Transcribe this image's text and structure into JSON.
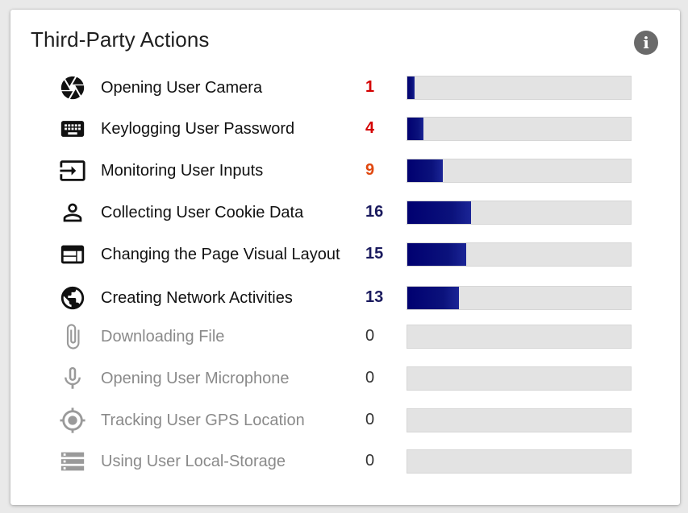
{
  "title": "Third-Party Actions",
  "max_value": 100,
  "colors": {
    "count_low": "#d40000",
    "count_mid": "#e0470e",
    "count_high": "#1a1a5e",
    "bar_fill": "#000070",
    "bar_track": "#e3e3e3",
    "icon_active": "#111111",
    "icon_inactive": "#9a9a9a"
  },
  "actions": [
    {
      "label": "Opening User Camera",
      "count": "1",
      "value": 1,
      "level": 3.3,
      "icon": "camera-aperture-icon",
      "active": true,
      "count_color": "#d40000"
    },
    {
      "label": "Keylogging User Password",
      "count": "4",
      "value": 4,
      "level": 7.2,
      "icon": "keyboard-icon",
      "active": true,
      "count_color": "#d40000"
    },
    {
      "label": "Monitoring User Inputs",
      "count": "9",
      "value": 9,
      "level": 16,
      "icon": "input-icon",
      "active": true,
      "count_color": "#e0470e"
    },
    {
      "label": "Collecting User Cookie Data",
      "count": "16",
      "value": 16,
      "level": 28.5,
      "icon": "person-icon",
      "active": true,
      "count_color": "#1a1a5e"
    },
    {
      "label": "Changing the Page Visual Layout",
      "count": "15",
      "value": 15,
      "level": 26.5,
      "icon": "web-layout-icon",
      "active": true,
      "count_color": "#1a1a5e"
    },
    {
      "label": "Creating Network Activities",
      "count": "13",
      "value": 13,
      "level": 23,
      "icon": "globe-icon",
      "active": true,
      "count_color": "#1a1a5e"
    },
    {
      "label": "Downloading File",
      "count": "0",
      "value": 0,
      "level": 0,
      "icon": "paperclip-icon",
      "active": false,
      "count_color": "#333333"
    },
    {
      "label": "Opening User Microphone",
      "count": "0",
      "value": 0,
      "level": 0,
      "icon": "microphone-icon",
      "active": false,
      "count_color": "#333333"
    },
    {
      "label": "Tracking User GPS Location",
      "count": "0",
      "value": 0,
      "level": 0,
      "icon": "gps-fixed-icon",
      "active": false,
      "count_color": "#333333"
    },
    {
      "label": "Using User Local-Storage",
      "count": "0",
      "value": 0,
      "level": 0,
      "icon": "storage-icon",
      "active": false,
      "count_color": "#333333"
    }
  ]
}
